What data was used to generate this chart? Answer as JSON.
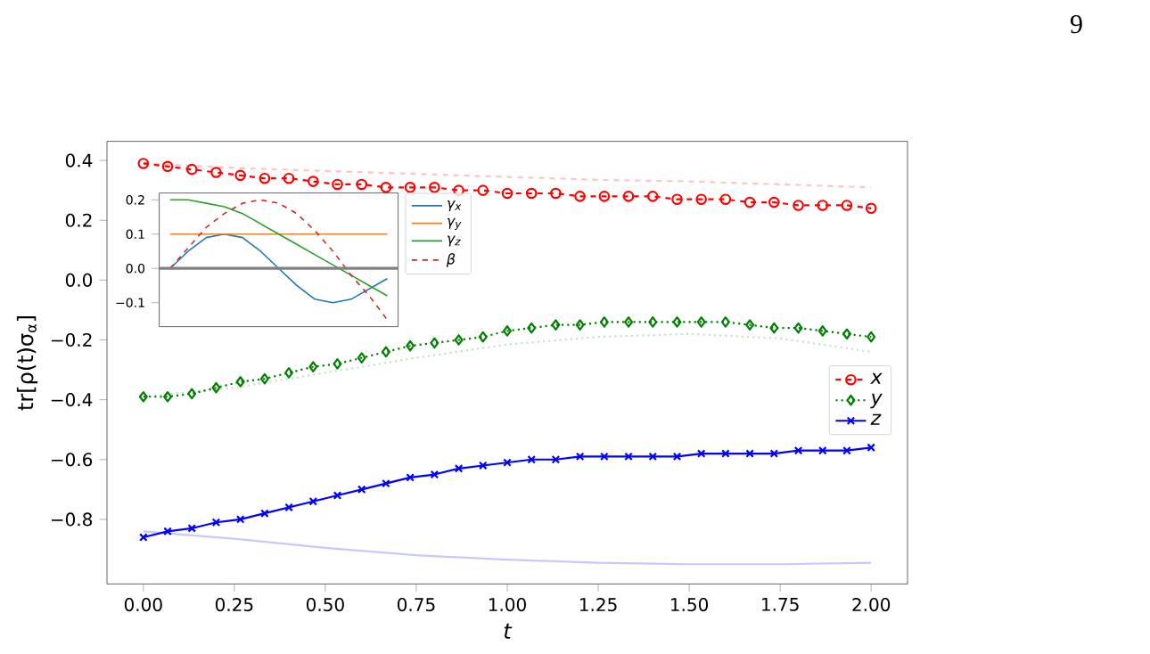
{
  "chart_data": [
    {
      "type": "line",
      "xlabel": "t",
      "ylabel": "tr[ρ(t)σ$_{α}$]",
      "annotations": [
        "9"
      ],
      "x": [
        0,
        0.0667,
        0.1333,
        0.2,
        0.2667,
        0.3333,
        0.4,
        0.4667,
        0.5333,
        0.6,
        0.6667,
        0.7333,
        0.8,
        0.8667,
        0.9333,
        1.0,
        1.0667,
        1.1333,
        1.2,
        1.2667,
        1.3333,
        1.4,
        1.4667,
        1.5333,
        1.6,
        1.6667,
        1.7333,
        1.8,
        1.8667,
        1.9333,
        2.0
      ],
      "xlim": [
        -0.1,
        2.1
      ],
      "ylim": [
        -1.016,
        0.464
      ],
      "xticks": [
        {
          "value": 0,
          "label": "0.00"
        },
        {
          "value": 0.25,
          "label": "0.25"
        },
        {
          "value": 0.5,
          "label": "0.50"
        },
        {
          "value": 0.75,
          "label": "0.75"
        },
        {
          "value": 1,
          "label": "1.00"
        },
        {
          "value": 1.25,
          "label": "1.25"
        },
        {
          "value": 1.5,
          "label": "1.50"
        },
        {
          "value": 1.75,
          "label": "1.75"
        },
        {
          "value": 2,
          "label": "2.00"
        }
      ],
      "yticks": [
        {
          "value": -0.8,
          "label": "−0.8"
        },
        {
          "value": -0.6,
          "label": "−0.6"
        },
        {
          "value": -0.4,
          "label": "−0.4"
        },
        {
          "value": -0.2,
          "label": "−0.2"
        },
        {
          "value": 0,
          "label": "0.0"
        },
        0.2,
        0.4
      ],
      "legend": "right",
      "series": [
        {
          "color": "#ffc4c4",
          "line_style": "dashed",
          "marker": "none",
          "x": [
            0,
            0.25,
            0.5,
            0.75,
            1.0,
            1.25,
            1.5,
            1.75,
            2.0
          ],
          "values": [
            0.39,
            0.375,
            0.365,
            0.355,
            0.345,
            0.335,
            0.33,
            0.32,
            0.31
          ]
        },
        {
          "color": "#c4e4c4",
          "line_style": "dotted",
          "marker": "none",
          "x": [
            0,
            0.25,
            0.5,
            0.75,
            1.0,
            1.25,
            1.5,
            1.75,
            2.0
          ],
          "values": [
            -0.39,
            -0.36,
            -0.31,
            -0.26,
            -0.215,
            -0.19,
            -0.18,
            -0.195,
            -0.24
          ]
        },
        {
          "color": "#c8c8ff",
          "line_style": "solid",
          "marker": "none",
          "x": [
            0,
            0.25,
            0.5,
            0.75,
            1.0,
            1.25,
            1.5,
            1.75,
            2.0
          ],
          "values": [
            -0.84,
            -0.865,
            -0.895,
            -0.92,
            -0.935,
            -0.945,
            -0.95,
            -0.95,
            -0.945
          ]
        },
        {
          "name": "x",
          "color": "#ff0000",
          "line_style": "dashed",
          "marker": "circle",
          "values": [
            0.39,
            0.38,
            0.37,
            0.36,
            0.35,
            0.34,
            0.34,
            0.33,
            0.32,
            0.32,
            0.31,
            0.31,
            0.31,
            0.3,
            0.3,
            0.29,
            0.29,
            0.29,
            0.28,
            0.28,
            0.28,
            0.28,
            0.27,
            0.27,
            0.27,
            0.26,
            0.26,
            0.25,
            0.25,
            0.25,
            0.24
          ]
        },
        {
          "name": "y",
          "color": "#008000",
          "line_style": "dotted",
          "marker": "diamond",
          "values": [
            -0.39,
            -0.39,
            -0.38,
            -0.36,
            -0.34,
            -0.33,
            -0.31,
            -0.29,
            -0.28,
            -0.26,
            -0.24,
            -0.22,
            -0.21,
            -0.2,
            -0.19,
            -0.17,
            -0.16,
            -0.15,
            -0.15,
            -0.14,
            -0.14,
            -0.14,
            -0.14,
            -0.14,
            -0.14,
            -0.15,
            -0.16,
            -0.16,
            -0.17,
            -0.18,
            -0.19
          ]
        },
        {
          "name": "z",
          "color": "#0000ff",
          "line_style": "solid",
          "marker": "cross",
          "values": [
            -0.86,
            -0.84,
            -0.83,
            -0.81,
            -0.8,
            -0.78,
            -0.76,
            -0.74,
            -0.72,
            -0.7,
            -0.68,
            -0.66,
            -0.65,
            -0.63,
            -0.62,
            -0.61,
            -0.6,
            -0.6,
            -0.59,
            -0.59,
            -0.59,
            -0.59,
            -0.59,
            -0.58,
            -0.58,
            -0.58,
            -0.58,
            -0.57,
            -0.57,
            -0.57,
            -0.56
          ]
        }
      ]
    },
    {
      "type": "line",
      "categories": [
        null,
        null,
        null,
        null,
        null,
        null,
        null,
        null,
        null,
        null,
        null,
        null,
        null
      ],
      "ylim": [
        -0.17,
        0.22
      ],
      "yticks": [
        {
          "value": -0.1,
          "label": "−0.1"
        },
        {
          "value": 0,
          "label": "0.0"
        },
        0.1,
        0.2
      ],
      "tick_labels": "y",
      "legend": "top right",
      "ref_lines": [
        {
          "axis": "y",
          "value": 0,
          "color": "#808080"
        }
      ],
      "series": [
        {
          "name": "γ$_{x}$",
          "color": "#1f77b4",
          "line_style": "solid",
          "values": [
            0,
            0.05,
            0.09,
            0.1,
            0.09,
            0.05,
            0.0,
            -0.05,
            -0.09,
            -0.1,
            -0.09,
            -0.06,
            -0.03
          ]
        },
        {
          "name": "γ$_{y}$",
          "color": "#ff7f0e",
          "line_style": "solid",
          "values": [
            0.1,
            0.1,
            0.1,
            0.1,
            0.1,
            0.1,
            0.1,
            0.1,
            0.1,
            0.1,
            0.1,
            0.1,
            0.1
          ]
        },
        {
          "name": "γ$_{z}$",
          "color": "#2ca02c",
          "line_style": "solid",
          "values": [
            0.2,
            0.2,
            0.19,
            0.18,
            0.16,
            0.13,
            0.1,
            0.07,
            0.04,
            0.01,
            -0.02,
            -0.05,
            -0.08
          ]
        },
        {
          "name": "β",
          "color": "#d62728",
          "line_style": "dashed",
          "values": [
            0,
            0.06,
            0.12,
            0.16,
            0.19,
            0.2,
            0.19,
            0.16,
            0.11,
            0.05,
            -0.02,
            -0.08,
            -0.15
          ]
        }
      ]
    }
  ]
}
